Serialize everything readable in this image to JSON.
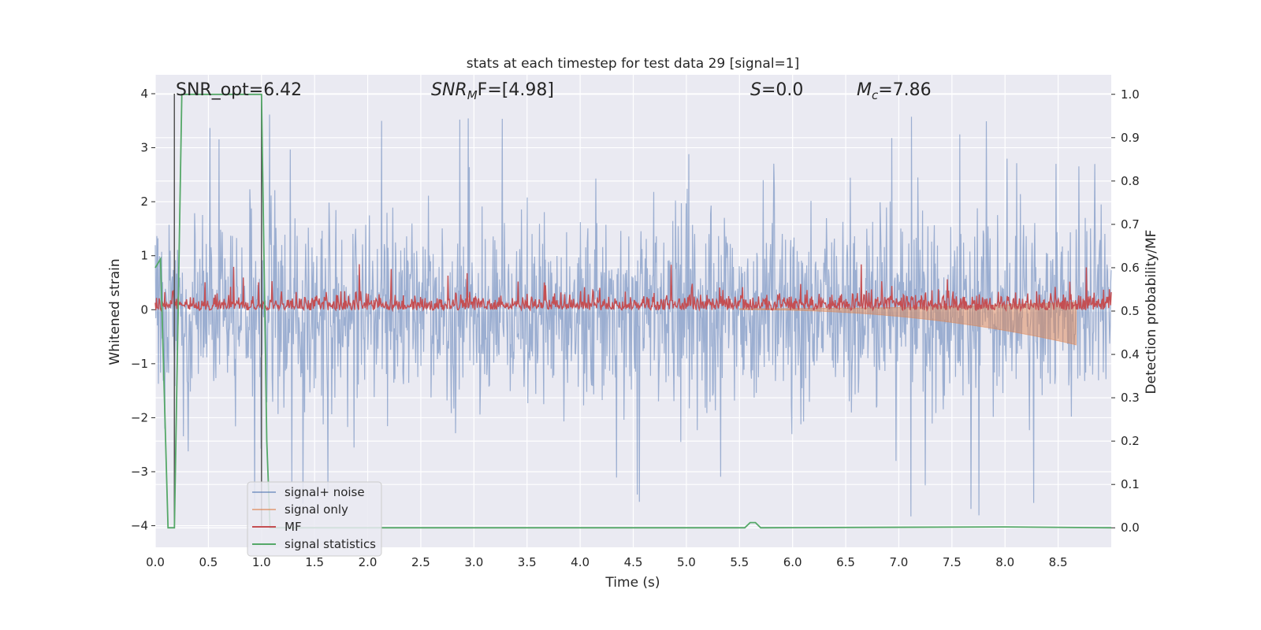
{
  "chart_data": {
    "type": "line",
    "title": "stats at each timestep for test data 29 [signal=1]",
    "xlabel": "Time (s)",
    "ylabel": "Whitened strain",
    "y2label": "Detection probability/MF",
    "xlim": [
      0.0,
      9.0
    ],
    "ylim": [
      -4.4,
      4.35
    ],
    "y2lim": [
      -0.045,
      1.045
    ],
    "x_ticks": [
      0.0,
      0.5,
      1.0,
      1.5,
      2.0,
      2.5,
      3.0,
      3.5,
      4.0,
      4.5,
      5.0,
      5.5,
      6.0,
      6.5,
      7.0,
      7.5,
      8.0,
      8.5
    ],
    "x_tick_labels": [
      "0.0",
      "0.5",
      "1.0",
      "1.5",
      "2.0",
      "2.5",
      "3.0",
      "3.5",
      "4.0",
      "4.5",
      "5.0",
      "5.5",
      "6.0",
      "6.5",
      "7.0",
      "7.5",
      "8.0",
      "8.5"
    ],
    "y_ticks": [
      4,
      3,
      2,
      1,
      0,
      -1,
      -2,
      -3,
      -4
    ],
    "y_tick_labels": [
      "4",
      "3",
      "2",
      "1",
      "0",
      "−1",
      "−2",
      "−3",
      "−4"
    ],
    "y2_ticks": [
      1.0,
      0.9,
      0.8,
      0.7,
      0.6,
      0.5,
      0.4,
      0.3,
      0.2,
      0.1,
      0.0
    ],
    "y2_tick_labels": [
      "1.0",
      "0.9",
      "0.8",
      "0.7",
      "0.6",
      "0.5",
      "0.4",
      "0.3",
      "0.2",
      "0.1",
      "0.0"
    ],
    "grid": true,
    "legend_position": "lower-left",
    "colors": {
      "background": "#eaeaf2",
      "grid": "#ffffff",
      "noise": "#4c72b0",
      "signal": "#dd8452",
      "mf": "#c44e52",
      "stats": "#55a868",
      "vline": "#555555"
    },
    "annotations": [
      {
        "pre": "SNR_opt=6.42",
        "var": "",
        "sub": "",
        "post": ""
      },
      {
        "pre": "",
        "var": "SNR",
        "sub": "M",
        "post": "F=[4.98]",
        "var2": "F"
      },
      {
        "pre": "",
        "var": "S",
        "sub": "",
        "post": "=0.0"
      },
      {
        "pre": "",
        "var": "M",
        "sub": "c",
        "post": "=7.86"
      }
    ],
    "vertical_lines_x": [
      0.18,
      1.0
    ],
    "series": [
      {
        "name": "signal+ noise",
        "description_values": "noise band approx ±1.6 with spikes up to 4.0 / -4.0"
      },
      {
        "name": "signal only",
        "chirp_start": 5.5,
        "chirp_end": 8.67,
        "max_amplitude": -0.65
      },
      {
        "name": "MF",
        "baseline_y2": 0.5,
        "typical_peak_y2": 0.53,
        "max_y2": 0.62
      },
      {
        "name": "signal statistics",
        "x": [
          0.0,
          0.05,
          0.12,
          0.18,
          0.25,
          0.95,
          1.0,
          1.05,
          1.08,
          5.55,
          5.6,
          5.65,
          5.7,
          8.0,
          9.0
        ],
        "y2": [
          0.6,
          0.62,
          0.0,
          0.0,
          1.0,
          1.0,
          1.0,
          0.2,
          0.0,
          0.0,
          0.012,
          0.012,
          0.0,
          0.002,
          0.0
        ]
      }
    ],
    "legend": [
      "signal+ noise",
      "signal only",
      "MF",
      "signal statistics"
    ]
  }
}
